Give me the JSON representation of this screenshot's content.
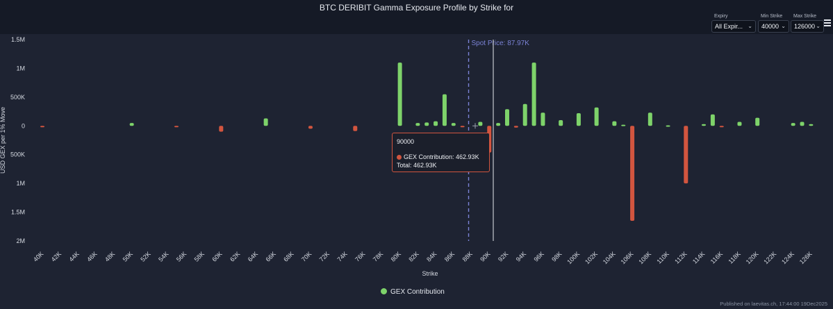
{
  "header": {
    "title": "BTC DERIBIT Gamma Exposure Profile by Strike for",
    "controls": [
      {
        "label": "Expiry",
        "value": "All Expir..."
      },
      {
        "label": "Min Strike",
        "value": "40000"
      },
      {
        "label": "Max Strike",
        "value": "126000"
      }
    ],
    "menu_icon": "hamburger-icon"
  },
  "tooltip": {
    "title": "90000",
    "line1": "GEX Contribution: 462.93K",
    "line2": "Total: 462.93K"
  },
  "legend": {
    "label": "GEX Contribution"
  },
  "footer": {
    "text": "Published on laevitas.ch, 17:44:00 19Dec2025"
  },
  "colors": {
    "positive": "#7ed36a",
    "negative": "#d2553f",
    "spot_line": "#7b83d6"
  },
  "chart_data": {
    "type": "bar",
    "title": "BTC DERIBIT Gamma Exposure Profile by Strike for",
    "xlabel": "Strike",
    "ylabel": "USD GEX per 1% Move",
    "ylim": [
      -2000000,
      1500000
    ],
    "y_ticks": [
      {
        "value": 1500000,
        "label": "1.5M"
      },
      {
        "value": 1000000,
        "label": "1M"
      },
      {
        "value": 500000,
        "label": "500K"
      },
      {
        "value": 0,
        "label": "0"
      },
      {
        "value": -500000,
        "label": "500K"
      },
      {
        "value": -1000000,
        "label": "1M"
      },
      {
        "value": -1500000,
        "label": "1.5M"
      },
      {
        "value": -2000000,
        "label": "2M"
      }
    ],
    "x_ticks": [
      "40K",
      "42K",
      "44K",
      "46K",
      "48K",
      "50K",
      "52K",
      "54K",
      "56K",
      "58K",
      "60K",
      "62K",
      "64K",
      "66K",
      "68K",
      "70K",
      "72K",
      "74K",
      "76K",
      "78K",
      "80K",
      "82K",
      "84K",
      "86K",
      "88K",
      "90K",
      "92K",
      "94K",
      "96K",
      "98K",
      "100K",
      "102K",
      "104K",
      "106K",
      "108K",
      "110K",
      "112K",
      "114K",
      "116K",
      "118K",
      "120K",
      "122K",
      "124K",
      "126K"
    ],
    "annotations": [
      {
        "type": "vline",
        "x": 88000,
        "label": "Spot Price: 87.97K",
        "style": "dashed"
      }
    ],
    "grid": false,
    "legend_position": "bottom",
    "series": [
      {
        "name": "GEX Contribution",
        "points": [
          {
            "x": 40000,
            "y": -5000
          },
          {
            "x": 50000,
            "y": 50000
          },
          {
            "x": 55000,
            "y": -6000
          },
          {
            "x": 60000,
            "y": -100000
          },
          {
            "x": 65000,
            "y": 130000
          },
          {
            "x": 70000,
            "y": -50000
          },
          {
            "x": 75000,
            "y": -90000
          },
          {
            "x": 80000,
            "y": 1100000
          },
          {
            "x": 82000,
            "y": 50000
          },
          {
            "x": 83000,
            "y": 60000
          },
          {
            "x": 84000,
            "y": 80000
          },
          {
            "x": 85000,
            "y": 550000
          },
          {
            "x": 86000,
            "y": 50000
          },
          {
            "x": 87000,
            "y": -5000
          },
          {
            "x": 89000,
            "y": 70000
          },
          {
            "x": 90000,
            "y": -462930
          },
          {
            "x": 91000,
            "y": 50000
          },
          {
            "x": 92000,
            "y": 290000
          },
          {
            "x": 93000,
            "y": -30000
          },
          {
            "x": 94000,
            "y": 380000
          },
          {
            "x": 95000,
            "y": 1100000
          },
          {
            "x": 96000,
            "y": 230000
          },
          {
            "x": 98000,
            "y": 100000
          },
          {
            "x": 100000,
            "y": 220000
          },
          {
            "x": 102000,
            "y": 320000
          },
          {
            "x": 104000,
            "y": 80000
          },
          {
            "x": 105000,
            "y": 20000
          },
          {
            "x": 106000,
            "y": -1650000
          },
          {
            "x": 108000,
            "y": 230000
          },
          {
            "x": 110000,
            "y": 10000
          },
          {
            "x": 112000,
            "y": -1000000
          },
          {
            "x": 114000,
            "y": 30000
          },
          {
            "x": 115000,
            "y": 200000
          },
          {
            "x": 116000,
            "y": -10000
          },
          {
            "x": 118000,
            "y": 70000
          },
          {
            "x": 120000,
            "y": 140000
          },
          {
            "x": 124000,
            "y": 50000
          },
          {
            "x": 125000,
            "y": 70000
          },
          {
            "x": 126000,
            "y": 30000
          }
        ]
      }
    ]
  }
}
